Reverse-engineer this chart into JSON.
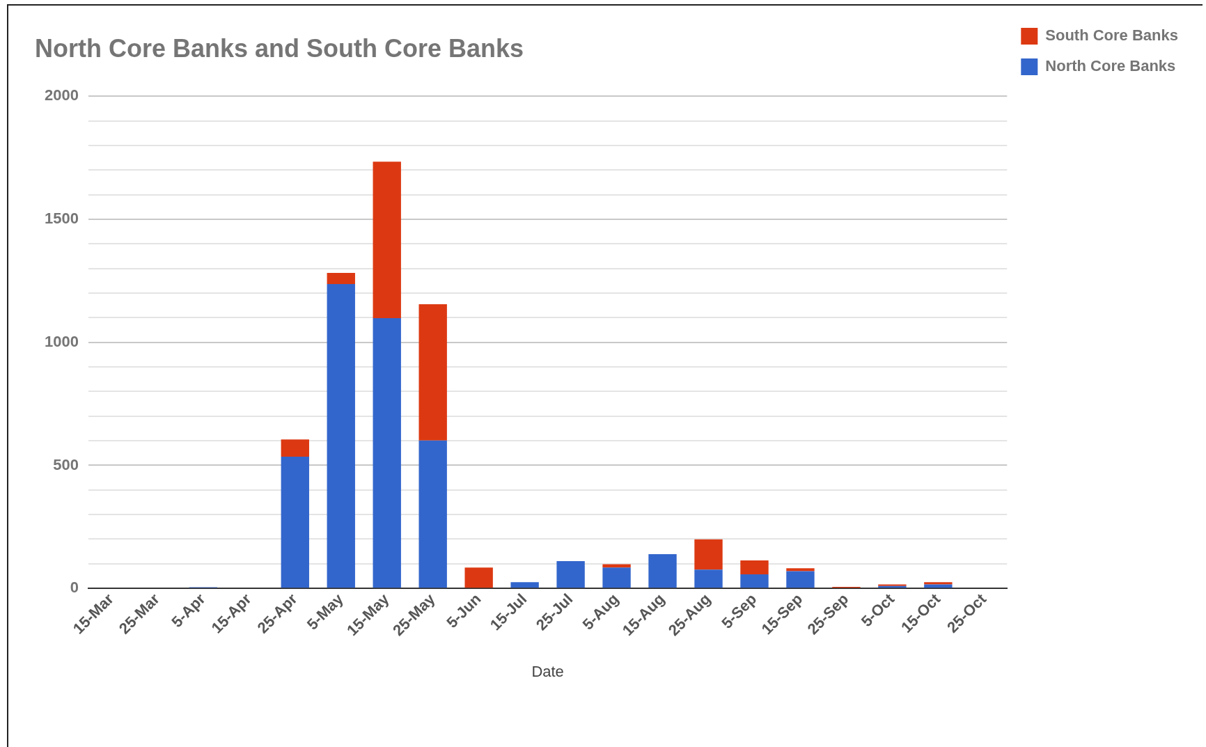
{
  "chart_data": {
    "type": "bar",
    "title": "North Core Banks and South Core Banks",
    "xlabel": "Date",
    "stacked": true,
    "categories": [
      "15-Mar",
      "25-Mar",
      "5-Apr",
      "15-Apr",
      "25-Apr",
      "5-May",
      "15-May",
      "25-May",
      "5-Jun",
      "15-Jul",
      "25-Jul",
      "5-Aug",
      "15-Aug",
      "25-Aug",
      "5-Sep",
      "15-Sep",
      "25-Sep",
      "5-Oct",
      "15-Oct",
      "25-Oct"
    ],
    "series": [
      {
        "name": "North Core Banks",
        "color": "#3366cc",
        "values": [
          0,
          0,
          5,
          0,
          535,
          1237,
          1098,
          601,
          0,
          25,
          111,
          85,
          139,
          76,
          57,
          70,
          0,
          10,
          16,
          0
        ]
      },
      {
        "name": "South Core Banks",
        "color": "#dc3912",
        "values": [
          0,
          0,
          0,
          0,
          70,
          45,
          636,
          554,
          85,
          0,
          0,
          13,
          0,
          123,
          57,
          12,
          6,
          6,
          9,
          0
        ]
      }
    ],
    "ylim": [
      0,
      2000
    ],
    "yticks": [
      0,
      {
        "value": 100,
        "label": null
      },
      {
        "value": 200,
        "label": null
      },
      {
        "value": 300,
        "label": null
      },
      {
        "value": 400,
        "label": null
      },
      500,
      {
        "value": 600,
        "label": null
      },
      {
        "value": 700,
        "label": null
      },
      {
        "value": 800,
        "label": null
      },
      {
        "value": 900,
        "label": null
      },
      1000,
      {
        "value": 1100,
        "label": null
      },
      {
        "value": 1200,
        "label": null
      },
      {
        "value": 1300,
        "label": null
      },
      {
        "value": 1400,
        "label": null
      },
      1500,
      {
        "value": 1600,
        "label": null
      },
      {
        "value": 1700,
        "label": null
      },
      {
        "value": 1800,
        "label": null
      },
      {
        "value": 1900,
        "label": null
      },
      2000
    ],
    "grid": "y",
    "legend": "top right"
  }
}
